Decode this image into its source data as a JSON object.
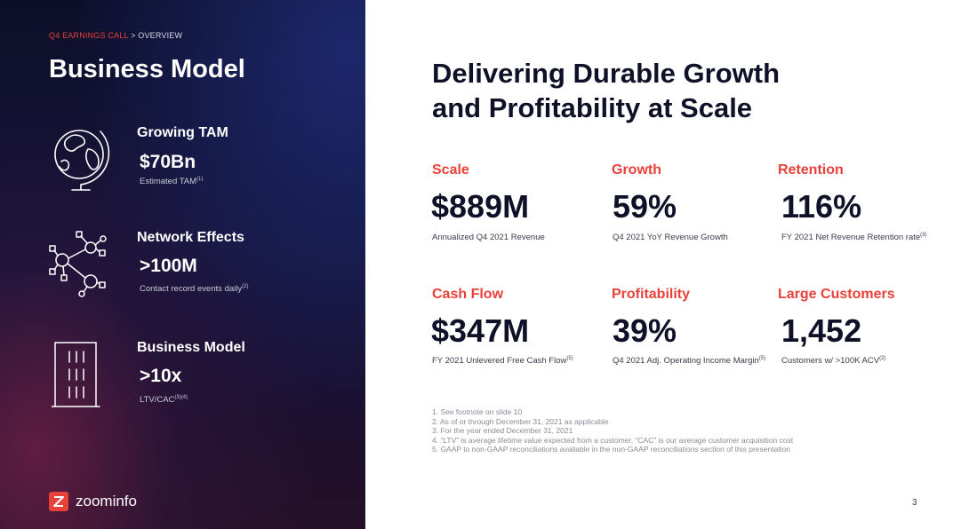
{
  "breadcrumb": {
    "section": "Q4 EARNINGS CALL",
    "separator": " > ",
    "page": "OVERVIEW"
  },
  "left_title": "Business Model",
  "features": [
    {
      "icon": "globe-icon",
      "title": "Growing TAM",
      "value": "$70Bn",
      "sub": "Estimated TAM",
      "sup": "(1)"
    },
    {
      "icon": "network-icon",
      "title": "Network Effects",
      "value": ">100M",
      "sub": "Contact record events daily",
      "sup": "(2)"
    },
    {
      "icon": "building-icon",
      "title": "Business Model",
      "value": ">10x",
      "sub": "LTV/CAC",
      "sup": "(3)(4)"
    }
  ],
  "logo_text": "zoominfo",
  "right_title_line1": "Delivering Durable Growth",
  "right_title_line2": "and Profitability at Scale",
  "metrics": [
    {
      "label": "Scale",
      "value": "$889M",
      "desc": "Annualized Q4 2021 Revenue",
      "sup": ""
    },
    {
      "label": "Growth",
      "value": "59%",
      "desc": "Q4 2021 YoY Revenue Growth",
      "sup": ""
    },
    {
      "label": "Retention",
      "value": "116%",
      "desc": "FY 2021 Net Revenue Retention rate",
      "sup": "(3)"
    },
    {
      "label": "Cash Flow",
      "value": "$347M",
      "desc": "FY 2021 Unlevered Free Cash Flow",
      "sup": "(5)"
    },
    {
      "label": "Profitability",
      "value": "39%",
      "desc": "Q4 2021 Adj. Operating Income Margin",
      "sup": "(5)"
    },
    {
      "label": "Large Customers",
      "value": "1,452",
      "desc": "Customers w/ >100K ACV",
      "sup": "(2)"
    }
  ],
  "footnotes": [
    "1.  See footnote on slide 10",
    "2.  As of or through December 31, 2021 as applicable",
    "3.  For the year ended December 31, 2021",
    "4.  “LTV” is average lifetime value expected from a customer. “CAC” is our average customer acquisition cost",
    "5.  GAAP to non-GAAP reconciliations available in the non-GAAP reconciliations section of this presentation"
  ],
  "page_number": "3",
  "colors": {
    "accent": "#e8413a",
    "dark_text": "#0f1128",
    "panel": "#121235"
  }
}
